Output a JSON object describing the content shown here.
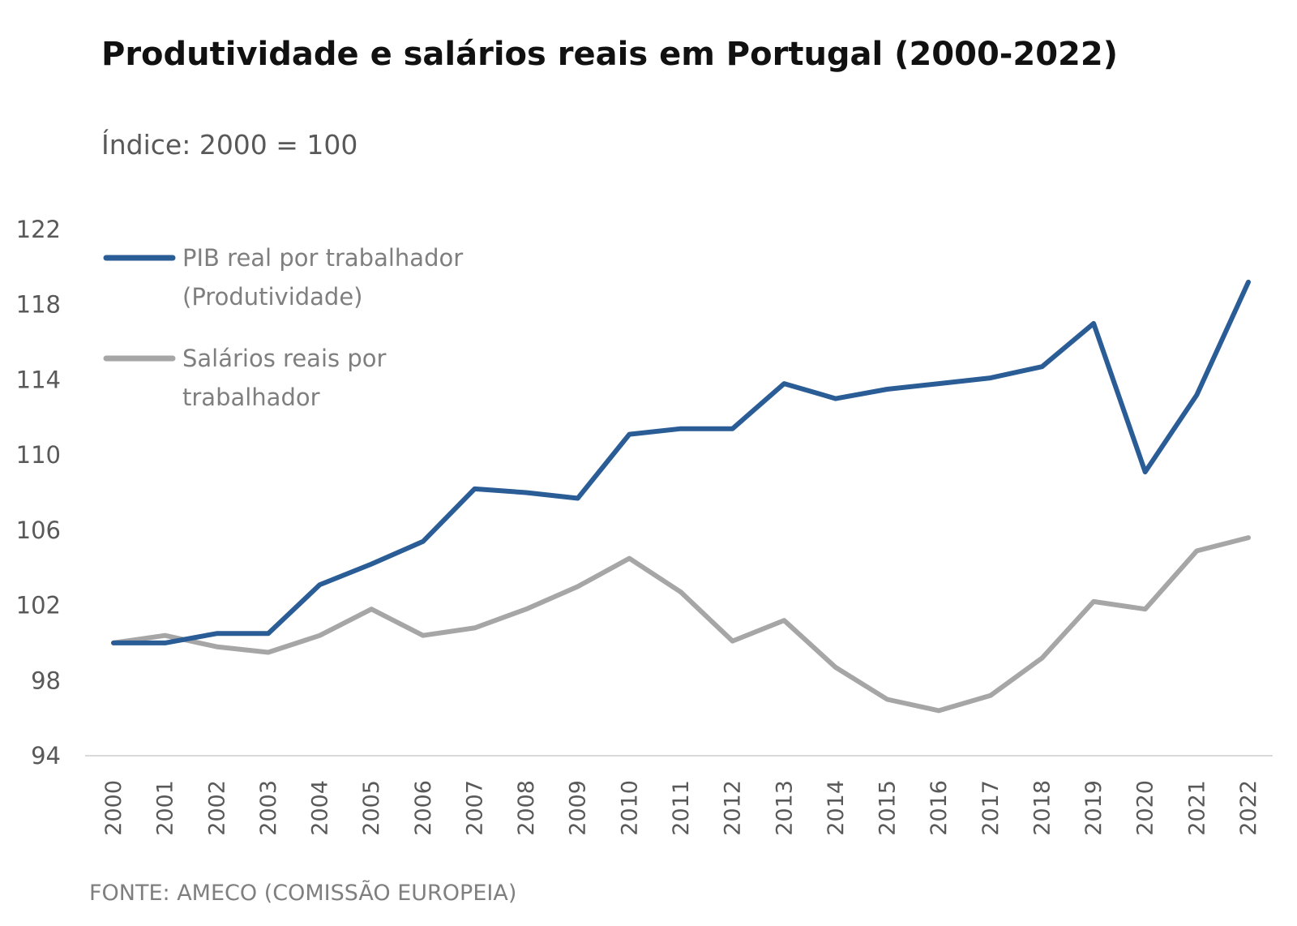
{
  "chart_data": {
    "type": "line",
    "title": "Produtividade e salários reais em Portugal (2000-2022)",
    "subtitle": "Índice: 2000 = 100",
    "source": "FONTE: AMECO (COMISSÃO EUROPEIA)",
    "xlabel": "",
    "ylabel": "",
    "ylim": [
      94,
      122
    ],
    "yticks": [
      "122",
      "118",
      "114",
      "110",
      "106",
      "102",
      "98",
      "94"
    ],
    "yticks_values": [
      122,
      118,
      114,
      110,
      106,
      102,
      98,
      94
    ],
    "grid": false,
    "categories": [
      "2000",
      "2001",
      "2002",
      "2003",
      "2004",
      "2005",
      "2006",
      "2007",
      "2008",
      "2009",
      "2010",
      "2011",
      "2012",
      "2013",
      "2014",
      "2015",
      "2016",
      "2017",
      "2018",
      "2019",
      "2020",
      "2021",
      "2022"
    ],
    "series": [
      {
        "name": "PIB real por trabalhador (Produtividade)",
        "legend_lines": [
          "PIB real por trabalhador",
          "(Produtividade)"
        ],
        "color": "#2a5c96",
        "values": [
          100.0,
          100.0,
          100.5,
          100.5,
          103.1,
          104.2,
          105.4,
          108.2,
          108.0,
          107.7,
          111.1,
          111.4,
          111.4,
          113.8,
          113.0,
          113.5,
          113.8,
          114.1,
          114.7,
          117.0,
          109.1,
          113.2,
          119.2
        ]
      },
      {
        "name": "Salários reais por trabalhador",
        "legend_lines": [
          "Salários reais por",
          "trabalhador"
        ],
        "color": "#a6a6a6",
        "values": [
          100.0,
          100.4,
          99.8,
          99.5,
          100.4,
          101.8,
          100.4,
          100.8,
          101.8,
          103.0,
          104.5,
          102.7,
          100.1,
          101.2,
          98.7,
          97.0,
          96.4,
          97.2,
          99.2,
          102.2,
          101.8,
          104.9,
          105.6
        ]
      }
    ]
  }
}
